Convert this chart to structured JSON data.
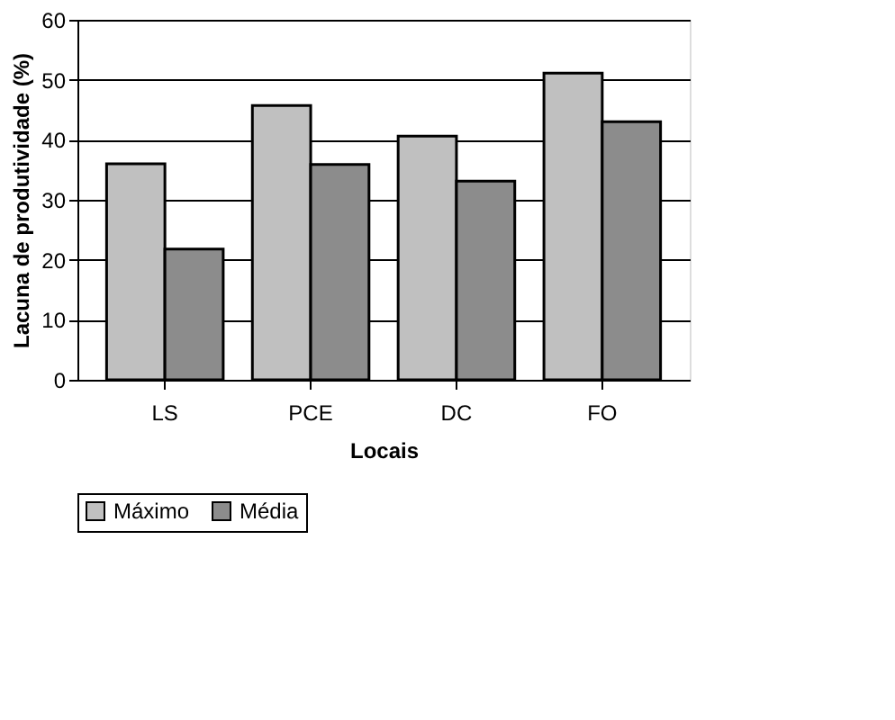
{
  "chart_data": {
    "type": "bar",
    "xlabel": "Locais",
    "ylabel": "Lacuna de produtividade (%)",
    "categories": [
      "LS",
      "PCE",
      "DC",
      "FO"
    ],
    "series": [
      {
        "name": "Máximo",
        "color": "#c0c0c0",
        "values": [
          36.0,
          45.7,
          40.6,
          51.1
        ]
      },
      {
        "name": "Média",
        "color": "#8c8c8c",
        "values": [
          21.8,
          35.9,
          33.1,
          43.0
        ]
      }
    ],
    "ylim": [
      0,
      60
    ],
    "yticks": [
      0,
      10,
      20,
      30,
      40,
      50,
      60
    ],
    "grid": "y",
    "legend": "bottom"
  }
}
